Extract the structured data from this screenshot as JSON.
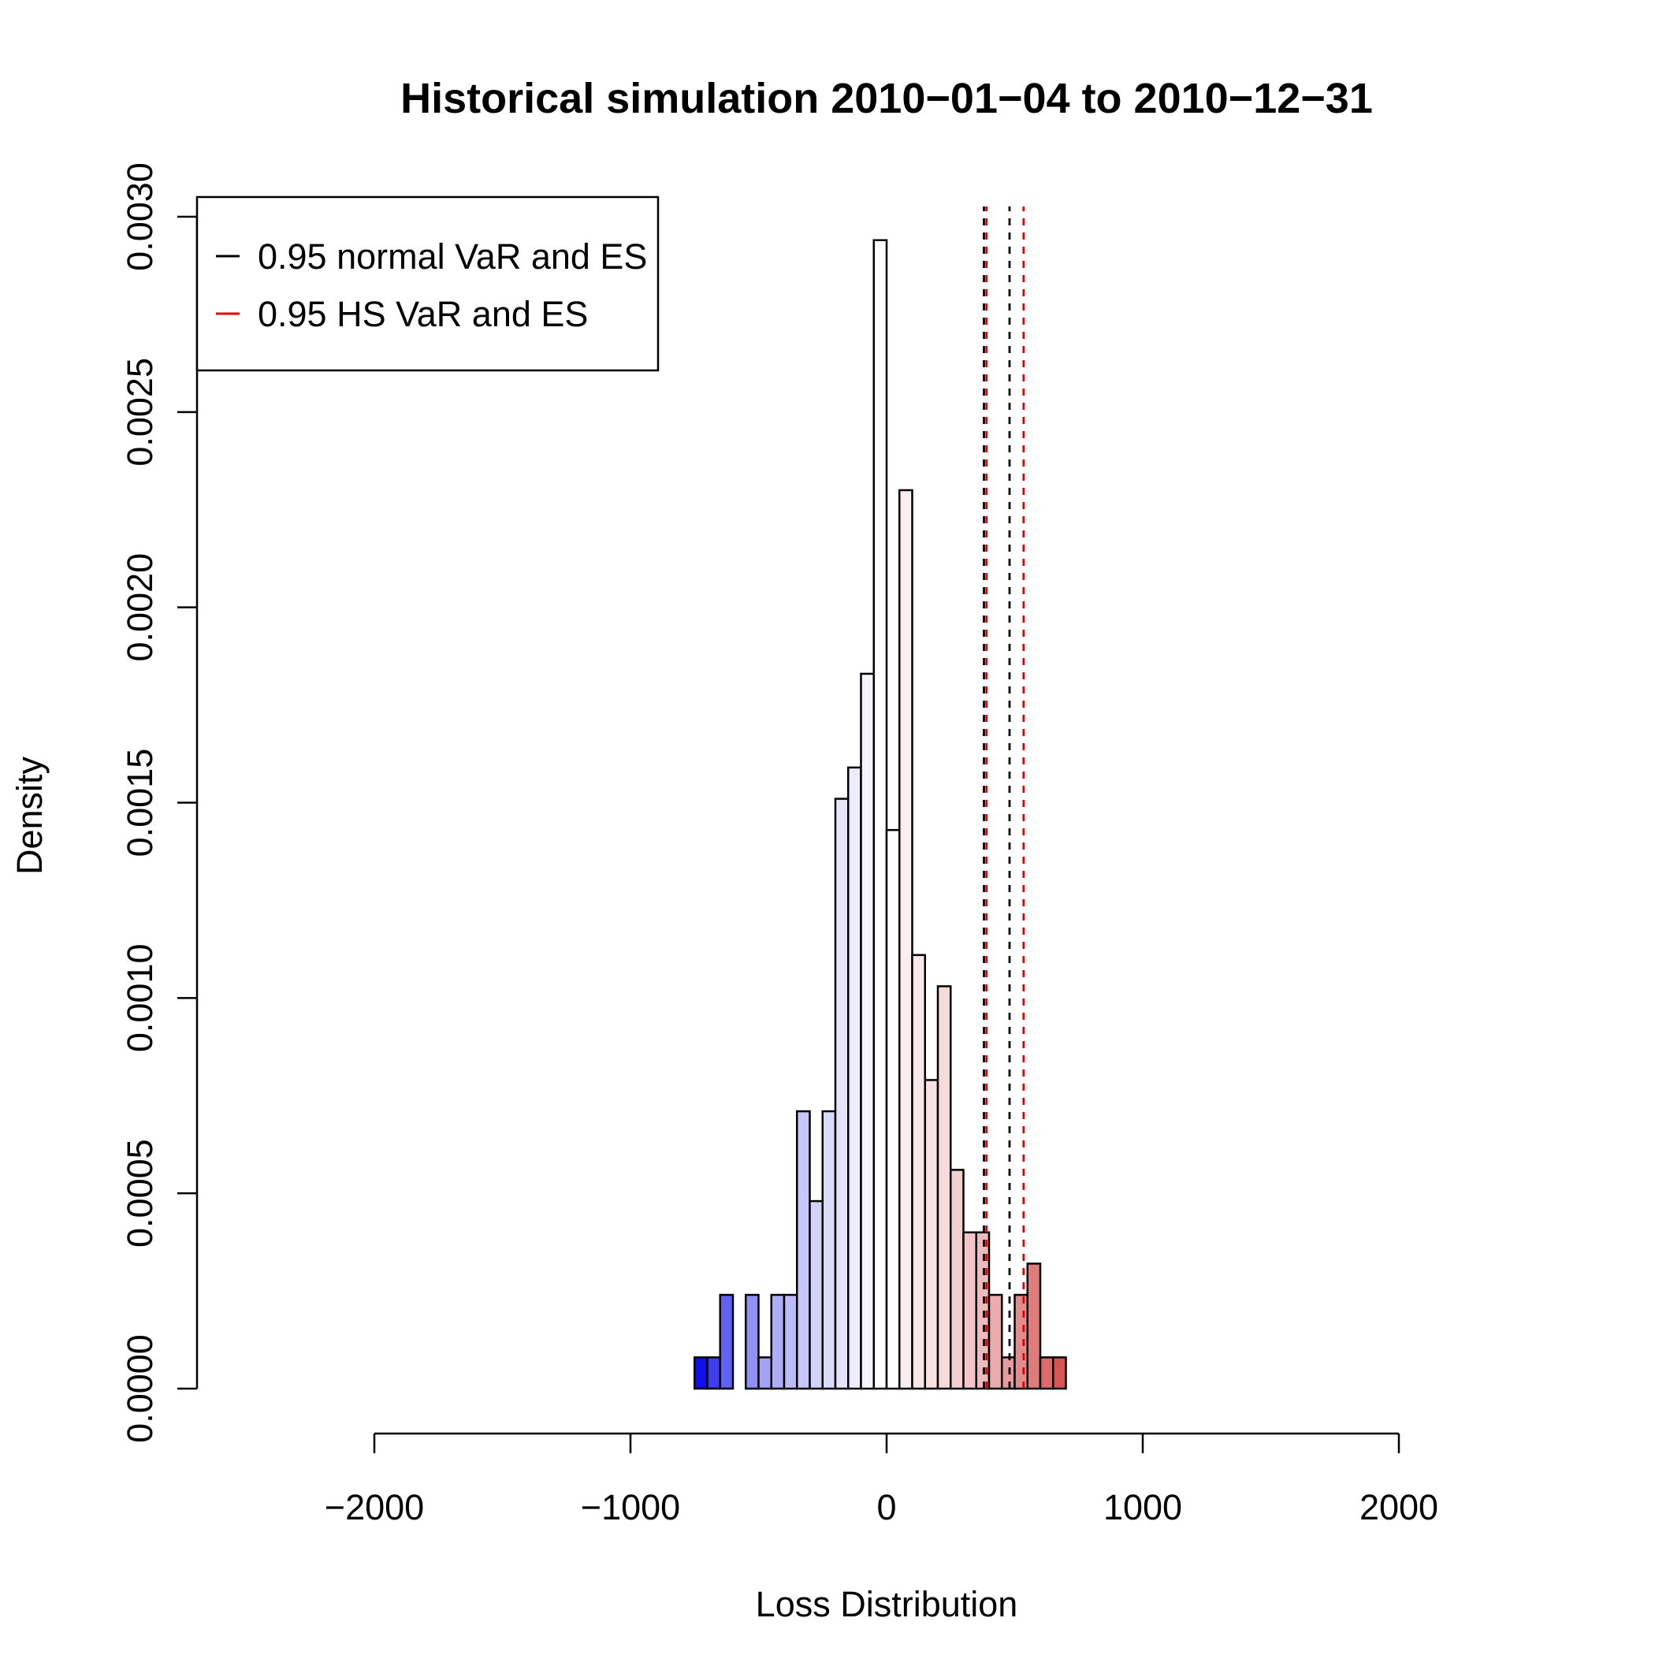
{
  "chart_data": {
    "type": "bar",
    "title": "Historical simulation 2010−01−04 to 2010−12−31",
    "xlabel": "Loss Distribution",
    "ylabel": "Density",
    "xlim": [
      -2000,
      2000
    ],
    "ylim": [
      0,
      0.003
    ],
    "x_ticks": [
      -2000,
      -1000,
      0,
      1000,
      2000
    ],
    "x_tick_labels": [
      "−2000",
      "−1000",
      "0",
      "1000",
      "2000"
    ],
    "y_ticks": [
      0,
      0.0005,
      0.001,
      0.0015,
      0.002,
      0.0025,
      0.003
    ],
    "y_tick_labels": [
      "0.0000",
      "0.0005",
      "0.0010",
      "0.0015",
      "0.0020",
      "0.0025",
      "0.0030"
    ],
    "bin_width": 50,
    "bins_start": [
      -750,
      -700,
      -650,
      -600,
      -550,
      -500,
      -450,
      -400,
      -350,
      -300,
      -250,
      -200,
      -150,
      -100,
      -50,
      0,
      50,
      100,
      150,
      200,
      250,
      300,
      350,
      400,
      450,
      500,
      550,
      600,
      650
    ],
    "density": [
      8e-05,
      8e-05,
      0.00024,
      0,
      0.00024,
      8e-05,
      0.00024,
      0.00024,
      0.00071,
      0.00048,
      0.00071,
      0.00151,
      0.00159,
      0.00183,
      0.00294,
      0.00143,
      0.0023,
      0.00111,
      0.00079,
      0.00103,
      0.00056,
      0.0004,
      0.0004,
      0.00024,
      8e-05,
      0.00024,
      0.00032,
      8e-05,
      8e-05
    ],
    "bar_colors": [
      "#1010EE",
      "#3F3FEE",
      "#6262F2",
      "#FFFFFF",
      "#9090F6",
      "#A2A2F7",
      "#AEAEF8",
      "#BBBBF9",
      "#C7C7FA",
      "#D2D2FB",
      "#DBDBFC",
      "#E4E4FD",
      "#ECECFE",
      "#F4F4FF",
      "#FFFFFF",
      "#FFFFFF",
      "#FCEEEE",
      "#FAE7E7",
      "#F8E1E1",
      "#F6D9D9",
      "#F3D0D0",
      "#F0C6C6",
      "#EDBBBB",
      "#E9ABAB",
      "#E69C9C",
      "#E38C8C",
      "#E07B7B",
      "#DD6A6A",
      "#D95555"
    ],
    "vlines": [
      {
        "series": "0.95 normal VaR and ES",
        "x": 380,
        "color": "#000000"
      },
      {
        "series": "0.95 normal VaR and ES",
        "x": 480,
        "color": "#000000"
      },
      {
        "series": "0.95 HS VaR and ES",
        "x": 390,
        "color": "#DD0000"
      },
      {
        "series": "0.95 HS VaR and ES",
        "x": 535,
        "color": "#DD0000"
      }
    ],
    "legend": {
      "position": "top-left",
      "entries": [
        {
          "label": "0.95 normal VaR and ES",
          "color": "#000000"
        },
        {
          "label": "0.95 HS VaR and ES",
          "color": "#DD0000"
        }
      ]
    },
    "grid": false
  }
}
